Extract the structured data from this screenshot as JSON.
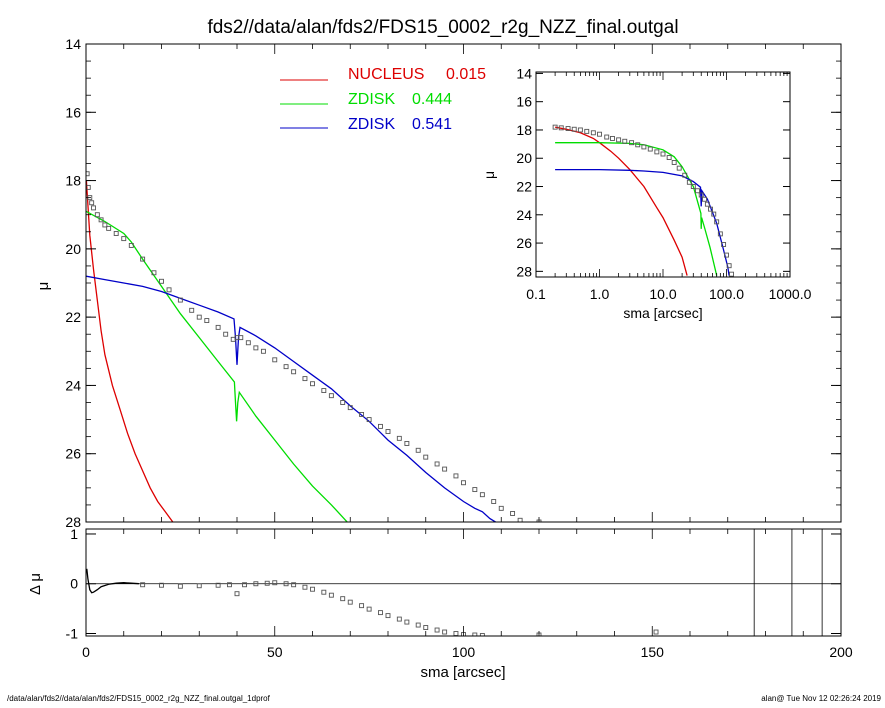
{
  "title": "fds2//data/alan/fds2/FDS15_0002_r2g_NZZ_final.outgal",
  "footer": {
    "left": "/data/alan/fds2//data/alan/fds2/FDS15_0002_r2g_NZZ_final.outgal_1dprof",
    "right": "alan@  Tue Nov 12 02:26:24 2019"
  },
  "colors": {
    "nucleus": "#dd0000",
    "zdisk1": "#00dd00",
    "zdisk2": "#0000c8",
    "data": "#555555"
  },
  "chart_data": [
    {
      "type": "line",
      "panel": "main",
      "ylabel": "μ",
      "xlim": [
        0,
        200
      ],
      "ylim": [
        28,
        14
      ],
      "y_inverted": true,
      "yticks": [
        14,
        16,
        18,
        20,
        22,
        24,
        26,
        28
      ],
      "legend": {
        "placement": "top-center",
        "entries": [
          {
            "label": "NUCLEUS",
            "value": "0.015",
            "color": "#dd0000"
          },
          {
            "label": "ZDISK",
            "value": "0.444",
            "color": "#00dd00"
          },
          {
            "label": "ZDISK",
            "value": "0.541",
            "color": "#0000c8"
          }
        ]
      },
      "series": [
        {
          "key": "nucleus",
          "color": "#dd0000",
          "x": [
            0.1,
            1,
            2,
            3,
            4,
            5,
            7,
            9,
            11,
            13,
            15,
            17,
            19,
            21,
            23,
            24
          ],
          "y": [
            18.0,
            19.6,
            20.6,
            21.5,
            22.4,
            23.1,
            24.0,
            24.7,
            25.4,
            26.0,
            26.5,
            27.0,
            27.4,
            27.7,
            28.0,
            28.1
          ]
        },
        {
          "key": "zdisk1",
          "color": "#00dd00",
          "x": [
            0,
            5,
            10,
            12,
            15,
            20,
            25,
            30,
            35,
            39.3,
            39.6,
            39.9,
            40.2,
            40.6,
            45,
            50,
            55,
            60,
            65,
            70
          ],
          "y": [
            18.9,
            19.2,
            19.55,
            19.8,
            20.3,
            21.1,
            21.9,
            22.6,
            23.3,
            23.9,
            24.5,
            25.05,
            24.5,
            24.2,
            24.9,
            25.6,
            26.3,
            26.95,
            27.5,
            28.1
          ]
        },
        {
          "key": "zdisk2",
          "color": "#0000c8",
          "x": [
            0,
            5,
            10,
            15,
            20,
            25,
            30,
            35,
            39.2,
            39.6,
            40,
            40.4,
            40.8,
            45,
            50,
            55,
            60,
            65,
            70,
            75,
            80,
            85,
            90,
            95,
            100,
            103,
            105,
            107,
            110
          ],
          "y": [
            20.8,
            20.9,
            21.0,
            21.1,
            21.25,
            21.45,
            21.65,
            21.85,
            22.05,
            22.6,
            23.4,
            22.6,
            22.3,
            22.55,
            22.9,
            23.3,
            23.7,
            24.1,
            24.6,
            25.05,
            25.6,
            26.05,
            26.55,
            27.0,
            27.4,
            27.6,
            27.7,
            27.9,
            28.1
          ]
        },
        {
          "key": "data",
          "color": "#555555",
          "style": "markers",
          "x": [
            0.3,
            0.6,
            1,
            1.5,
            2,
            3,
            4,
            5,
            6,
            8,
            10,
            12,
            15,
            18,
            20,
            22,
            25,
            28,
            30,
            32,
            35,
            37,
            39,
            40,
            41,
            43,
            45,
            47,
            50,
            53,
            55,
            58,
            60,
            63,
            65,
            68,
            70,
            73,
            75,
            78,
            80,
            83,
            85,
            88,
            90,
            93,
            95,
            98,
            100,
            103,
            105,
            108,
            110,
            113,
            115,
            118,
            120
          ],
          "y": [
            17.8,
            18.2,
            18.5,
            18.65,
            18.8,
            19.0,
            19.15,
            19.3,
            19.4,
            19.55,
            19.7,
            19.9,
            20.3,
            20.7,
            20.95,
            21.2,
            21.5,
            21.8,
            22.0,
            22.1,
            22.3,
            22.5,
            22.65,
            22.6,
            22.6,
            22.75,
            22.9,
            23.0,
            23.25,
            23.45,
            23.6,
            23.8,
            23.95,
            24.15,
            24.3,
            24.5,
            24.65,
            24.85,
            25.0,
            25.2,
            25.35,
            25.55,
            25.7,
            25.9,
            26.1,
            26.3,
            26.45,
            26.65,
            26.85,
            27.05,
            27.2,
            27.4,
            27.6,
            27.75,
            27.95,
            28.2,
            28.0
          ]
        }
      ]
    },
    {
      "type": "line",
      "panel": "residual",
      "xlabel": "sma [arcsec]",
      "ylabel": "Δ μ",
      "xlim": [
        0,
        200
      ],
      "ylim": [
        -1.05,
        1.1
      ],
      "xticks": [
        0,
        50,
        100,
        150,
        200
      ],
      "yticks": [
        -1,
        0,
        1
      ],
      "zero_line": true,
      "vertical_lines_x": [
        177,
        187,
        195
      ],
      "series": [
        {
          "key": "residual_curve",
          "color": "#000000",
          "x": [
            0.2,
            0.5,
            1,
            1.5,
            2,
            3,
            4,
            6,
            8,
            10,
            12,
            14
          ],
          "y": [
            0.3,
            0.1,
            -0.12,
            -0.18,
            -0.17,
            -0.12,
            -0.06,
            -0.01,
            0.01,
            0.02,
            0.01,
            0.0
          ]
        },
        {
          "key": "residual_points",
          "color": "#555555",
          "style": "markers",
          "x": [
            15,
            20,
            25,
            30,
            35,
            38,
            40,
            42,
            45,
            48,
            50,
            53,
            55,
            58,
            60,
            63,
            65,
            68,
            70,
            73,
            75,
            78,
            80,
            83,
            85,
            88,
            90,
            93,
            95,
            98,
            100,
            103,
            105,
            120,
            151
          ],
          "y": [
            -0.02,
            -0.03,
            -0.05,
            -0.04,
            -0.03,
            -0.02,
            -0.2,
            -0.02,
            0.0,
            0.01,
            0.02,
            0.0,
            -0.02,
            -0.07,
            -0.11,
            -0.17,
            -0.23,
            -0.3,
            -0.37,
            -0.44,
            -0.51,
            -0.58,
            -0.64,
            -0.71,
            -0.77,
            -0.83,
            -0.88,
            -0.93,
            -0.97,
            -1.0,
            -1.02,
            -1.03,
            -1.04,
            -1.03,
            -0.97
          ]
        }
      ]
    },
    {
      "type": "line",
      "panel": "inset",
      "xlabel": "sma [arcsec]",
      "ylabel": "μ",
      "x_scale": "log",
      "xlim": [
        0.1,
        1000
      ],
      "ylim": [
        28.4,
        13.9
      ],
      "y_inverted": true,
      "xticks": [
        "0.1",
        "1.0",
        "10.0",
        "100.0",
        "1000.0"
      ],
      "yticks": [
        14,
        16,
        18,
        20,
        22,
        24,
        26,
        28
      ],
      "series": [
        {
          "key": "nucleus",
          "color": "#dd0000",
          "x": [
            0.2,
            0.3,
            0.5,
            0.8,
            1,
            1.5,
            2,
            3,
            5,
            8,
            10,
            15,
            20,
            24
          ],
          "y": [
            17.8,
            17.95,
            18.2,
            18.6,
            18.9,
            19.5,
            20.0,
            20.8,
            22.0,
            23.5,
            24.2,
            25.8,
            27.0,
            28.3
          ]
        },
        {
          "key": "zdisk1",
          "color": "#00dd00",
          "x": [
            0.2,
            1,
            3,
            5,
            10,
            15,
            20,
            30,
            39.5,
            40,
            40.6,
            45,
            55,
            70
          ],
          "y": [
            18.9,
            18.9,
            18.95,
            19.05,
            19.4,
            19.9,
            20.6,
            22.0,
            23.9,
            25.0,
            24.2,
            24.9,
            26.3,
            28.3
          ]
        },
        {
          "key": "zdisk2",
          "color": "#0000c8",
          "x": [
            0.2,
            1,
            3,
            5,
            10,
            20,
            30,
            39,
            40,
            41,
            50,
            70,
            90,
            105,
            110
          ],
          "y": [
            20.8,
            20.8,
            20.85,
            20.9,
            21.0,
            21.25,
            21.65,
            22.05,
            23.4,
            22.3,
            22.9,
            24.6,
            26.5,
            27.7,
            28.3
          ]
        },
        {
          "key": "data",
          "color": "#555555",
          "style": "markers",
          "x": [
            0.2,
            0.25,
            0.32,
            0.4,
            0.5,
            0.63,
            0.8,
            1.0,
            1.3,
            1.6,
            2,
            2.5,
            3.2,
            4,
            5,
            6.3,
            8,
            10,
            12.5,
            15,
            18,
            22,
            26,
            30,
            35,
            40,
            45,
            50,
            56,
            63,
            70,
            80,
            90,
            100,
            110,
            120
          ],
          "y": [
            17.8,
            17.85,
            17.9,
            17.95,
            18.0,
            18.1,
            18.2,
            18.3,
            18.5,
            18.6,
            18.7,
            18.8,
            18.9,
            19.05,
            19.2,
            19.35,
            19.55,
            19.7,
            19.95,
            20.3,
            20.7,
            21.2,
            21.7,
            22.0,
            22.3,
            22.6,
            22.9,
            23.25,
            23.6,
            23.95,
            24.5,
            25.35,
            26.1,
            26.85,
            27.6,
            28.2
          ]
        }
      ]
    }
  ]
}
